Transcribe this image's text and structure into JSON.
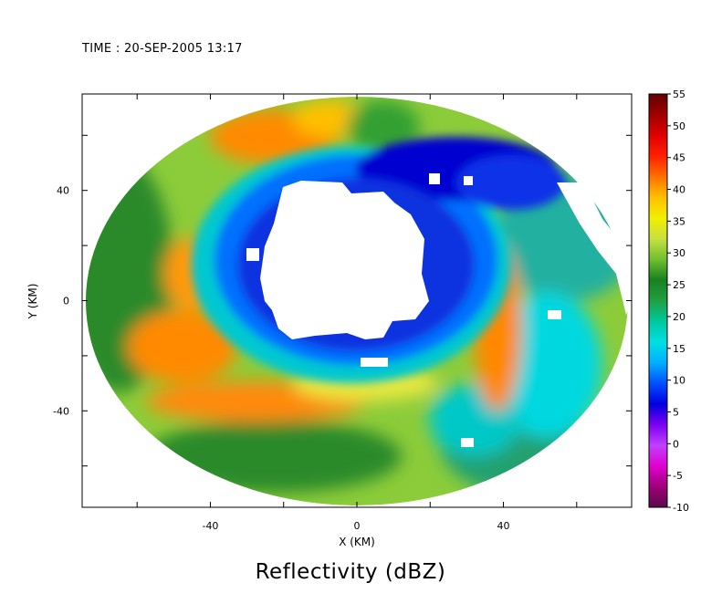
{
  "header": {
    "time_label": "TIME : 20-SEP-2005 13:17"
  },
  "chart_data": {
    "type": "heatmap",
    "title": "Reflectivity (dBZ)",
    "xlabel": "X (KM)",
    "ylabel": "Y (KM)",
    "xlim": [
      -75,
      75
    ],
    "ylim": [
      -75,
      75
    ],
    "x_ticks": [
      -40,
      0,
      40
    ],
    "y_ticks": [
      -40,
      0,
      40
    ],
    "x_tick_labels": [
      "-40",
      "0",
      "40"
    ],
    "y_tick_labels": [
      "-40",
      "0",
      "40"
    ],
    "colorbar": {
      "label": "dBZ",
      "min": -10,
      "max": 55,
      "ticks": [
        -10,
        -5,
        0,
        5,
        10,
        15,
        20,
        25,
        30,
        35,
        40,
        45,
        50,
        55
      ],
      "tick_labels": [
        "-10",
        "-5",
        "0",
        "5",
        "10",
        "15",
        "20",
        "25",
        "30",
        "35",
        "40",
        "45",
        "50",
        "55"
      ],
      "colors": [
        "#5a0a4a",
        "#a0007a",
        "#e000d0",
        "#c040ff",
        "#7a00f0",
        "#0000e0",
        "#0050ff",
        "#00b0ff",
        "#00e0e0",
        "#00c8a0",
        "#20a040",
        "#188020",
        "#70c030",
        "#c8e040",
        "#f0f000",
        "#ffc000",
        "#ff7000",
        "#ff2000",
        "#e00000",
        "#a00000",
        "#600000"
      ]
    },
    "radar_radius_km": 74,
    "eye_echo_free": true,
    "features": [
      {
        "type": "eyewall",
        "center": [
          -3,
          15
        ],
        "radius_km": 20,
        "dbz_inner": 8,
        "dbz_outer": 22
      },
      {
        "type": "rainband",
        "description": "outer ring",
        "radius_km": 52,
        "dbz": 40
      },
      {
        "type": "rainband",
        "description": "east band",
        "x": 40,
        "y": [
          -35,
          5
        ],
        "dbz": 42
      }
    ]
  }
}
